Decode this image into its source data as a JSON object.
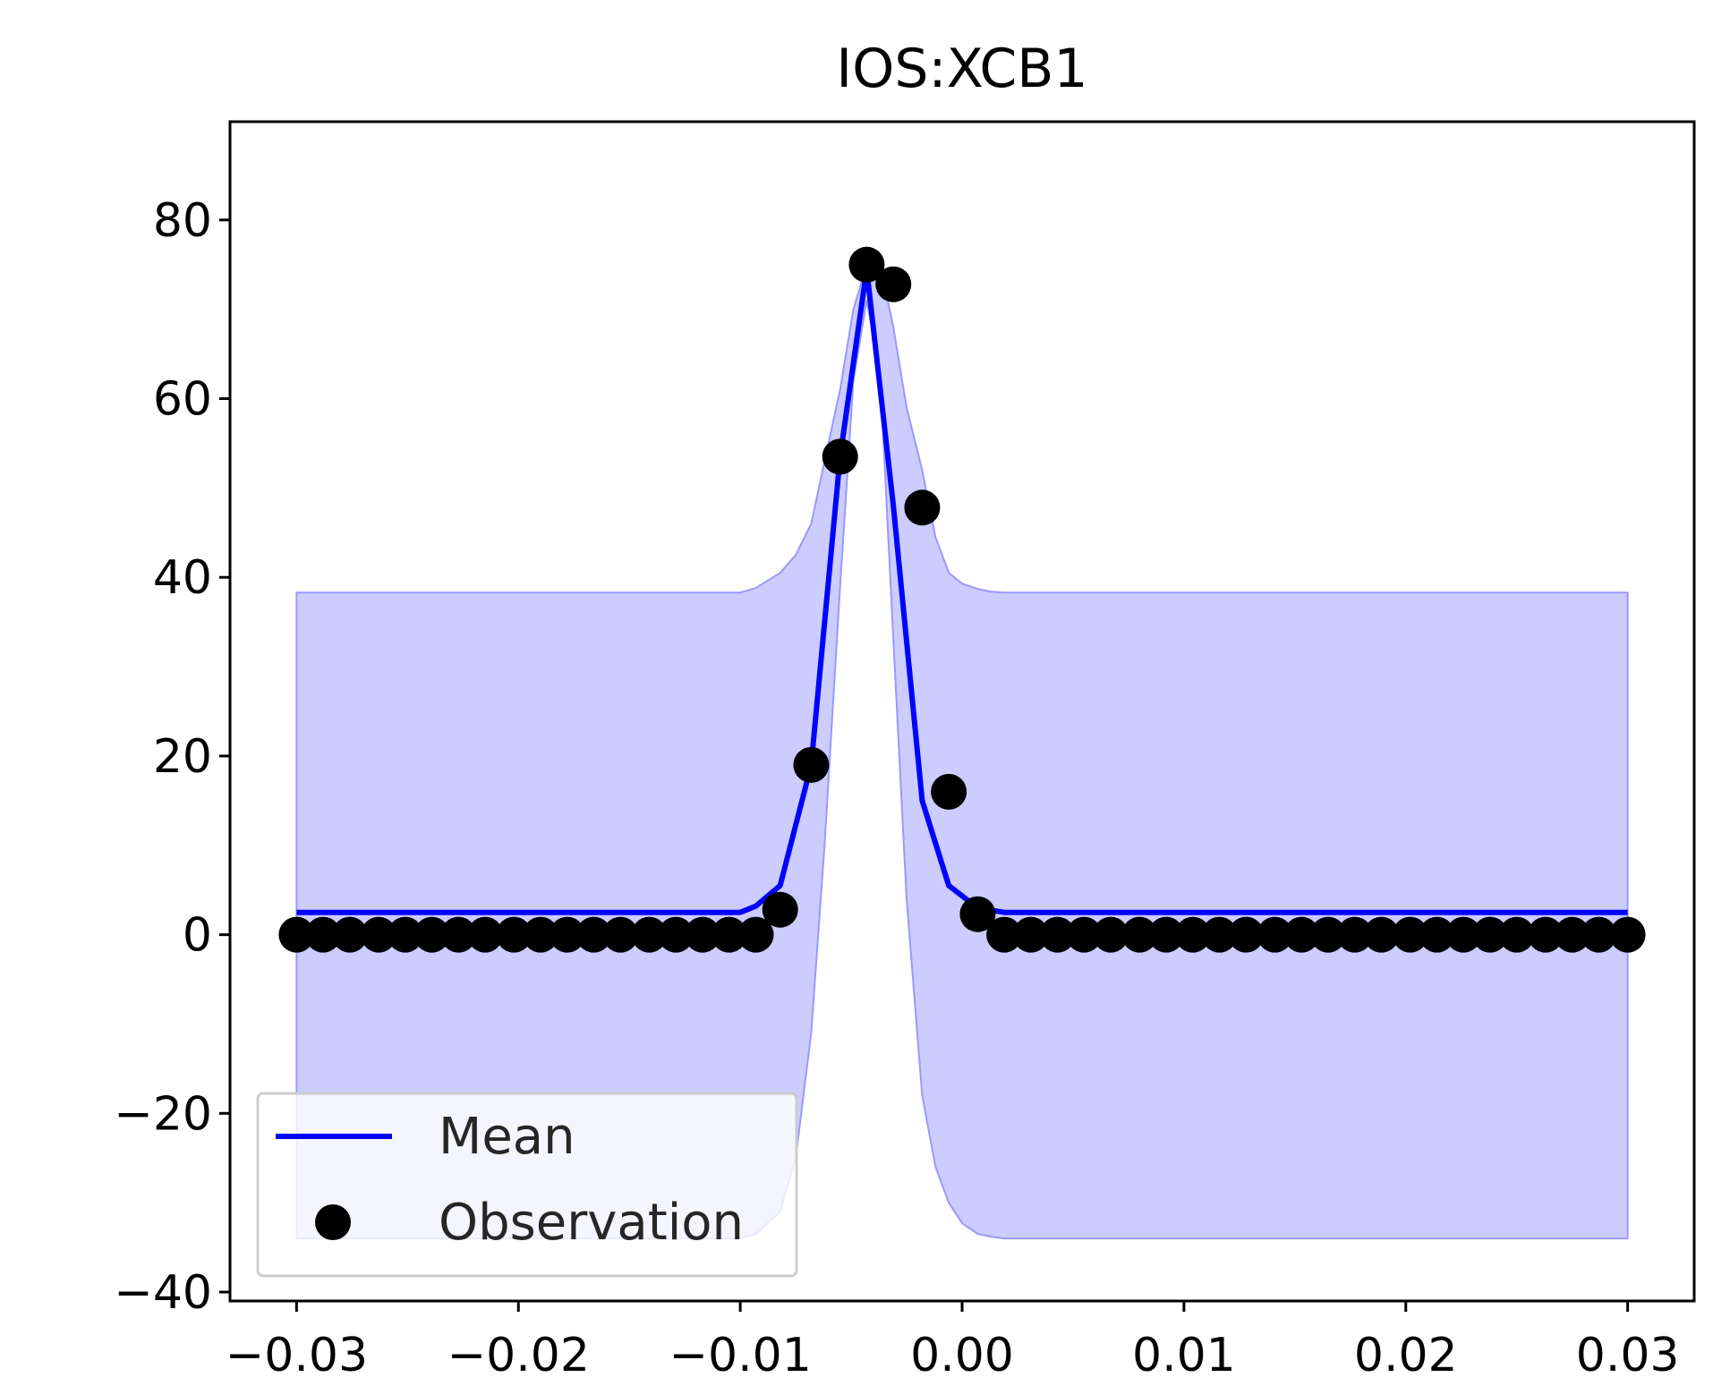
{
  "chart_data": {
    "type": "line",
    "title": "IOS:XCB1",
    "xlabel": "",
    "ylabel": "",
    "xlim": [
      -0.033,
      0.033
    ],
    "ylim": [
      -41,
      91
    ],
    "xticks": [
      -0.03,
      -0.02,
      -0.01,
      0.0,
      0.01,
      0.02,
      0.03
    ],
    "xtick_labels": [
      "−0.03",
      "−0.02",
      "−0.01",
      "0.00",
      "0.01",
      "0.02",
      "0.03"
    ],
    "yticks": [
      -40,
      -20,
      0,
      20,
      40,
      60,
      80
    ],
    "ytick_labels": [
      "−40",
      "−20",
      "0",
      "20",
      "40",
      "60",
      "80"
    ],
    "grid": false,
    "legend_position": "lower-left",
    "legend": [
      {
        "label": "Mean",
        "marker": "line",
        "color": "#0000ff"
      },
      {
        "label": "Observation",
        "marker": "dot",
        "color": "#000000"
      }
    ],
    "colors": {
      "mean": "#0000ff",
      "band": "#ccccff",
      "band_edge": "#9999ff",
      "observation": "#000000"
    },
    "observations": {
      "x": [
        -0.03,
        -0.0288,
        -0.0276,
        -0.0263,
        -0.0251,
        -0.0239,
        -0.0227,
        -0.0215,
        -0.0202,
        -0.019,
        -0.0178,
        -0.0166,
        -0.0154,
        -0.0141,
        -0.0129,
        -0.0117,
        -0.0105,
        -0.0093,
        -0.0082,
        -0.0068,
        -0.0055,
        -0.0043,
        -0.0031,
        -0.0018,
        -0.0006,
        0.0007,
        0.0019,
        0.0031,
        0.0043,
        0.0055,
        0.0067,
        0.008,
        0.0092,
        0.0104,
        0.0116,
        0.0128,
        0.0141,
        0.0153,
        0.0165,
        0.0177,
        0.0189,
        0.0202,
        0.0214,
        0.0226,
        0.0238,
        0.025,
        0.0263,
        0.0275,
        0.0287,
        0.03
      ],
      "y": [
        0,
        0,
        0,
        0,
        0,
        0,
        0,
        0,
        0,
        0,
        0,
        0,
        0,
        0,
        0,
        0,
        0,
        0,
        2.8,
        19,
        53.5,
        75,
        72.8,
        47.8,
        16,
        2.3,
        0,
        0,
        0,
        0,
        0,
        0,
        0,
        0,
        0,
        0,
        0,
        0,
        0,
        0,
        0,
        0,
        0,
        0,
        0,
        0,
        0,
        0,
        0,
        0
      ]
    },
    "series": [
      {
        "name": "Mean",
        "x": [
          -0.03,
          -0.01,
          -0.0093,
          -0.0082,
          -0.0068,
          -0.0055,
          -0.0043,
          -0.0031,
          -0.0018,
          -0.0006,
          0.0007,
          0.0019,
          0.03
        ],
        "y": [
          2.5,
          2.5,
          3.2,
          5.5,
          19,
          53.5,
          74.5,
          48,
          15,
          5.5,
          3.0,
          2.5,
          2.5
        ]
      }
    ],
    "confidence_band": {
      "x": [
        -0.03,
        -0.01,
        -0.0093,
        -0.0082,
        -0.0075,
        -0.0068,
        -0.0062,
        -0.0055,
        -0.0049,
        -0.0043,
        -0.0037,
        -0.0031,
        -0.0025,
        -0.0018,
        -0.0012,
        -0.0006,
        0.0,
        0.0007,
        0.0013,
        0.0019,
        0.03
      ],
      "upper": [
        38.3,
        38.3,
        38.8,
        40.5,
        42.5,
        46,
        53,
        61,
        70,
        75,
        75,
        68,
        59,
        52,
        44.5,
        40.5,
        39.3,
        38.7,
        38.4,
        38.3,
        38.3
      ],
      "lower": [
        -34,
        -34,
        -33.5,
        -31,
        -25,
        -11,
        10,
        39,
        62,
        71,
        63,
        33,
        4,
        -18,
        -26,
        -30,
        -32.3,
        -33.5,
        -33.8,
        -34,
        -34
      ]
    }
  }
}
